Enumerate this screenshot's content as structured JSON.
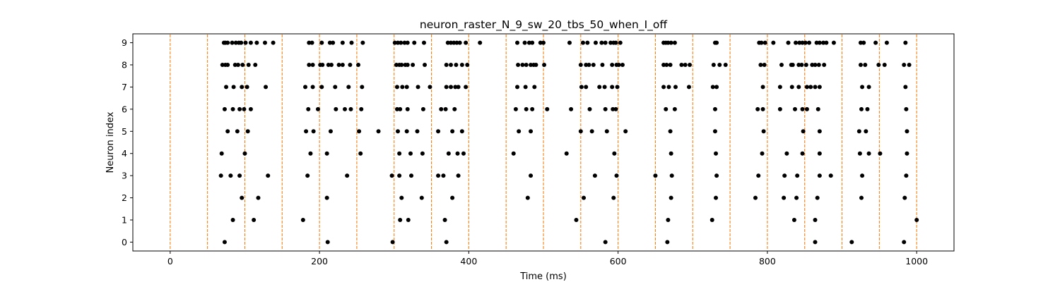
{
  "chart_data": {
    "type": "scatter",
    "title": "neuron_raster_N_9_sw_20_tbs_50_when_I_off",
    "xlabel": "Time (ms)",
    "ylabel": "Neuron index",
    "xlim": [
      -50,
      1050
    ],
    "ylim": [
      -0.4,
      9.4
    ],
    "x_ticks": [
      0,
      200,
      400,
      600,
      800,
      1000
    ],
    "y_ticks": [
      0,
      1,
      2,
      3,
      4,
      5,
      6,
      7,
      8,
      9
    ],
    "grid": false,
    "legend": "none",
    "marker_color": "#000000",
    "vline_color": "#ff7f0e",
    "vlines": [
      0,
      50,
      100,
      150,
      200,
      250,
      300,
      350,
      400,
      450,
      500,
      550,
      600,
      650,
      700,
      750,
      800,
      850,
      900,
      950,
      1000
    ],
    "spikes": [
      {
        "neuron": 0,
        "times": [
          73,
          211,
          298,
          370,
          583,
          666,
          864,
          913,
          983
        ]
      },
      {
        "neuron": 1,
        "times": [
          84,
          112,
          178,
          308,
          319,
          368,
          544,
          667,
          726,
          836,
          864,
          1000
        ]
      },
      {
        "neuron": 2,
        "times": [
          96,
          118,
          210,
          310,
          337,
          378,
          479,
          554,
          594,
          671,
          731,
          784,
          822,
          839,
          867,
          926,
          984
        ]
      },
      {
        "neuron": 3,
        "times": [
          68,
          81,
          93,
          131,
          184,
          237,
          297,
          307,
          323,
          359,
          366,
          386,
          483,
          569,
          598,
          650,
          672,
          732,
          788,
          823,
          840,
          870,
          885,
          927,
          986
        ]
      },
      {
        "neuron": 4,
        "times": [
          69,
          100,
          188,
          210,
          255,
          307,
          322,
          338,
          373,
          385,
          393,
          460,
          531,
          595,
          671,
          731,
          793,
          826,
          847,
          870,
          924,
          936,
          951,
          987
        ]
      },
      {
        "neuron": 5,
        "times": [
          77,
          90,
          104,
          182,
          192,
          215,
          253,
          279,
          305,
          317,
          331,
          359,
          378,
          391,
          467,
          483,
          550,
          565,
          585,
          610,
          670,
          730,
          795,
          848,
          870,
          923,
          932,
          987
        ]
      },
      {
        "neuron": 6,
        "times": [
          73,
          84,
          93,
          99,
          108,
          185,
          198,
          222,
          234,
          242,
          256,
          304,
          308,
          318,
          339,
          363,
          369,
          381,
          463,
          477,
          485,
          505,
          537,
          562,
          583,
          593,
          597,
          664,
          676,
          730,
          787,
          794,
          817,
          837,
          847,
          853,
          868,
          926,
          934,
          986
        ]
      },
      {
        "neuron": 7,
        "times": [
          75,
          85,
          96,
          103,
          128,
          181,
          191,
          203,
          221,
          239,
          257,
          304,
          311,
          317,
          332,
          348,
          370,
          376,
          382,
          386,
          396,
          465,
          476,
          488,
          551,
          557,
          575,
          582,
          592,
          599,
          661,
          668,
          677,
          695,
          727,
          732,
          794,
          817,
          833,
          842,
          853,
          858,
          864,
          870,
          927,
          936,
          985
        ]
      },
      {
        "neuron": 8,
        "times": [
          70,
          74,
          77,
          87,
          91,
          97,
          105,
          114,
          186,
          191,
          201,
          204,
          212,
          216,
          226,
          231,
          241,
          252,
          303,
          307,
          310,
          315,
          318,
          325,
          341,
          370,
          376,
          383,
          391,
          398,
          466,
          472,
          477,
          483,
          487,
          490,
          501,
          550,
          557,
          561,
          567,
          579,
          592,
          598,
          601,
          606,
          661,
          665,
          670,
          685,
          690,
          696,
          728,
          736,
          744,
          791,
          796,
          819,
          832,
          834,
          842,
          846,
          852,
          860,
          864,
          869,
          876,
          925,
          931,
          949,
          957,
          983,
          990
        ]
      },
      {
        "neuron": 9,
        "times": [
          72,
          74,
          77,
          83,
          88,
          92,
          95,
          101,
          108,
          116,
          127,
          138,
          186,
          190,
          203,
          214,
          218,
          231,
          243,
          258,
          301,
          305,
          309,
          314,
          318,
          327,
          340,
          372,
          376,
          380,
          384,
          388,
          396,
          415,
          465,
          475,
          481,
          485,
          496,
          500,
          535,
          553,
          559,
          570,
          578,
          583,
          590,
          594,
          597,
          603,
          661,
          664,
          667,
          671,
          676,
          730,
          732,
          789,
          792,
          797,
          808,
          828,
          838,
          843,
          847,
          851,
          856,
          866,
          870,
          875,
          879,
          889,
          925,
          929,
          945,
          960,
          985
        ]
      }
    ]
  }
}
